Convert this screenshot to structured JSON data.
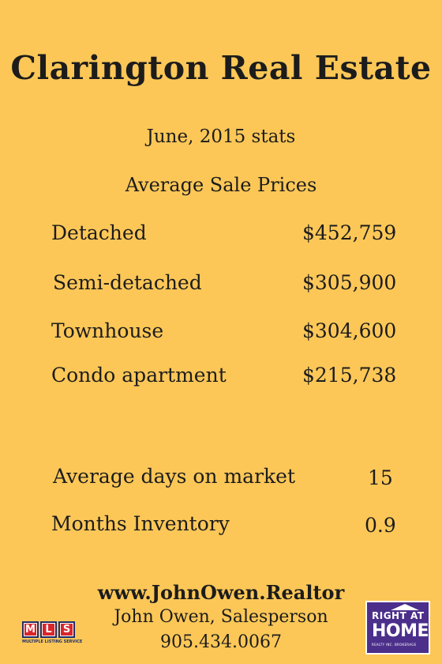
{
  "header": {
    "title": "Clarington Real Estate",
    "period": "June, 2015 stats",
    "section_title": "Average Sale Prices"
  },
  "prices": [
    {
      "label": "Detached",
      "value": "$452,759"
    },
    {
      "label": "Semi-detached",
      "value": "$305,900"
    },
    {
      "label": "Townhouse",
      "value": "$304,600"
    },
    {
      "label": "Condo apartment",
      "value": "$215,738"
    }
  ],
  "market": [
    {
      "label": "Average days on market",
      "value": "15"
    },
    {
      "label": "Months Inventory",
      "value": "0.9"
    }
  ],
  "footer": {
    "website": "www.JohnOwen.Realtor",
    "agent": "John Owen, Salesperson",
    "phone": "905.434.0067"
  },
  "logos": {
    "mls_letters": [
      "M",
      "L",
      "S"
    ],
    "mls_caption": "MULTIPLE LISTING SERVICE",
    "rah_top": "RIGHT AT",
    "rah_main": "HOME",
    "rah_sub": "REALTY INC. BROKERAGE",
    "rah_color": "#4b2f8a"
  }
}
